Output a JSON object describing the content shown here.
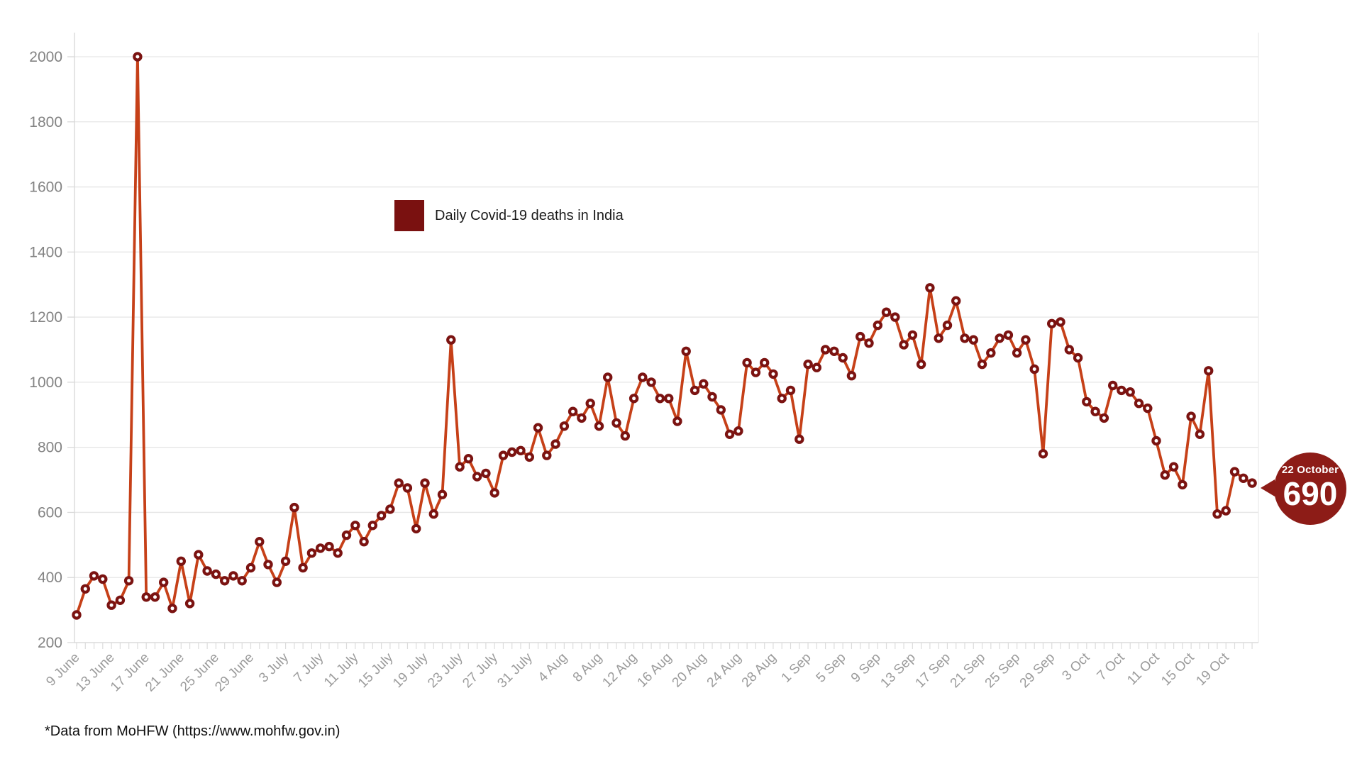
{
  "page": {
    "background": "#ffffff"
  },
  "legend": {
    "label": "Daily Covid-19 deaths in India",
    "swatch_color": "#7a1110"
  },
  "footer": {
    "note": "*Data from MoHFW (https://www.mohfw.gov.in)"
  },
  "callout": {
    "date": "22 October",
    "value": "690",
    "color": "#8d1c17"
  },
  "chart_data": {
    "type": "line",
    "title": "",
    "series_name": "Daily Covid-19 deaths in India",
    "ylim": [
      200,
      2000
    ],
    "y_ticks": [
      200,
      400,
      600,
      800,
      1000,
      1200,
      1400,
      1600,
      1800,
      2000
    ],
    "grid": "horizontal",
    "legend_position": "top-center",
    "x_tick_every": 4,
    "line_color": "#c64018",
    "marker_ring_color": "#7b1311",
    "marker_hole_color": "#ffffff",
    "x": [
      "9 June",
      "10 June",
      "11 June",
      "12 June",
      "13 June",
      "14 June",
      "15 June",
      "16 June",
      "17 June",
      "18 June",
      "19 June",
      "20 June",
      "21 June",
      "22 June",
      "23 June",
      "24 June",
      "25 June",
      "26 June",
      "27 June",
      "28 June",
      "29 June",
      "30 June",
      "1 July",
      "2 July",
      "3 July",
      "4 July",
      "5 July",
      "6 July",
      "7 July",
      "8 July",
      "9 July",
      "10 July",
      "11 July",
      "12 July",
      "13 July",
      "14 July",
      "15 July",
      "16 July",
      "17 July",
      "18 July",
      "19 July",
      "20 July",
      "21 July",
      "22 July",
      "23 July",
      "24 July",
      "25 July",
      "26 July",
      "27 July",
      "28 July",
      "29 July",
      "30 July",
      "31 July",
      "1 Aug",
      "2 Aug",
      "3 Aug",
      "4 Aug",
      "5 Aug",
      "6 Aug",
      "7 Aug",
      "8 Aug",
      "9 Aug",
      "10 Aug",
      "11 Aug",
      "12 Aug",
      "13 Aug",
      "14 Aug",
      "15 Aug",
      "16 Aug",
      "17 Aug",
      "18 Aug",
      "19 Aug",
      "20 Aug",
      "21 Aug",
      "22 Aug",
      "23 Aug",
      "24 Aug",
      "25 Aug",
      "26 Aug",
      "27 Aug",
      "28 Aug",
      "29 Aug",
      "30 Aug",
      "31 Aug",
      "1 Sep",
      "2 Sep",
      "3 Sep",
      "4 Sep",
      "5 Sep",
      "6 Sep",
      "7 Sep",
      "8 Sep",
      "9 Sep",
      "10 Sep",
      "11 Sep",
      "12 Sep",
      "13 Sep",
      "14 Sep",
      "15 Sep",
      "16 Sep",
      "17 Sep",
      "18 Sep",
      "19 Sep",
      "20 Sep",
      "21 Sep",
      "22 Sep",
      "23 Sep",
      "24 Sep",
      "25 Sep",
      "26 Sep",
      "27 Sep",
      "28 Sep",
      "29 Sep",
      "30 Sep",
      "1 Oct",
      "2 Oct",
      "3 Oct",
      "4 Oct",
      "5 Oct",
      "6 Oct",
      "7 Oct",
      "8 Oct",
      "9 Oct",
      "10 Oct",
      "11 Oct",
      "12 Oct",
      "13 Oct",
      "14 Oct",
      "15 Oct",
      "16 Oct",
      "17 Oct",
      "18 Oct",
      "19 Oct",
      "20 Oct",
      "21 Oct",
      "22 Oct"
    ],
    "values": [
      285,
      365,
      405,
      395,
      315,
      330,
      390,
      2000,
      340,
      340,
      385,
      305,
      450,
      320,
      470,
      420,
      410,
      390,
      405,
      390,
      430,
      510,
      440,
      385,
      450,
      615,
      430,
      475,
      490,
      495,
      475,
      530,
      560,
      510,
      560,
      590,
      610,
      690,
      675,
      550,
      690,
      595,
      655,
      1130,
      740,
      765,
      710,
      720,
      660,
      775,
      785,
      790,
      770,
      860,
      775,
      810,
      865,
      910,
      890,
      935,
      865,
      1015,
      875,
      835,
      950,
      1015,
      1000,
      950,
      950,
      880,
      1095,
      975,
      995,
      955,
      915,
      840,
      850,
      1060,
      1030,
      1060,
      1025,
      950,
      975,
      825,
      1055,
      1045,
      1100,
      1095,
      1075,
      1020,
      1140,
      1120,
      1175,
      1215,
      1200,
      1115,
      1145,
      1055,
      1290,
      1135,
      1175,
      1250,
      1135,
      1130,
      1055,
      1090,
      1135,
      1145,
      1090,
      1130,
      1040,
      780,
      1180,
      1185,
      1100,
      1075,
      940,
      910,
      890,
      990,
      975,
      970,
      935,
      920,
      820,
      715,
      740,
      685,
      895,
      840,
      1035,
      595,
      605,
      725,
      705,
      690
    ],
    "annotation": {
      "date": "22 October",
      "value": 690
    }
  }
}
